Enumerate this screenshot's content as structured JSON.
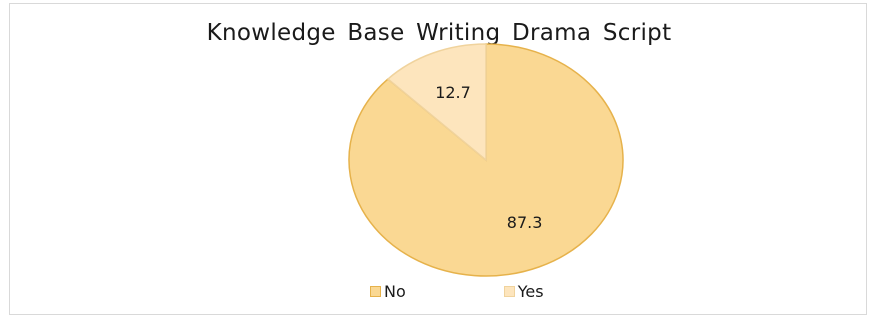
{
  "chart_data": {
    "type": "pie",
    "title": "Knowledge Base Writing Drama Script",
    "slices": [
      {
        "label": "No",
        "value": 87.3,
        "color": "#fad893",
        "stroke": "#e6b24b"
      },
      {
        "label": "Yes",
        "value": 12.7,
        "color": "#fde5bd",
        "stroke": "#f0d39d"
      }
    ],
    "data_labels": [
      "87.3",
      "12.7"
    ],
    "legend": {
      "placement": "bottom",
      "entries": [
        "No",
        "Yes"
      ]
    }
  }
}
